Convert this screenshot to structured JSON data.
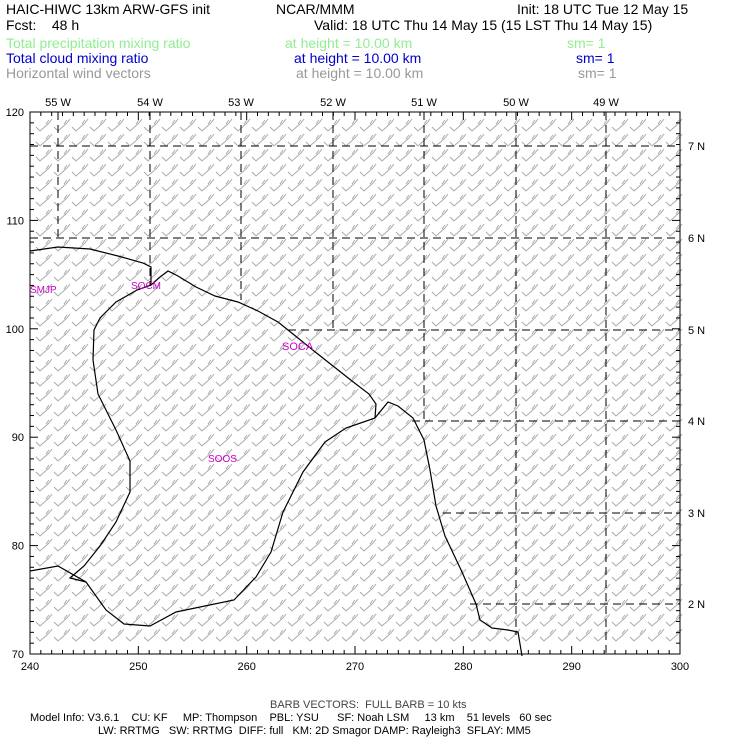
{
  "header": {
    "line1_left": "HAIC-HIWC 13km ARW-GFS init",
    "line1_center": "NCAR/MMM",
    "line1_right": "Init: 18 UTC Tue 12 May 15",
    "line2_left": "Fcst:    48 h",
    "line2_right": "Valid: 18 UTC Thu 14 May 15 (15 LST Thu 14 May 15)"
  },
  "fields": [
    {
      "name": "Total precipitation mixing ratio",
      "height": "at height = 10.00 km",
      "sm": "sm= 1",
      "color": "#90ee90"
    },
    {
      "name": "Total cloud mixing ratio",
      "height": "at height = 10.00 km",
      "sm": "sm= 1",
      "color": "#0000cd"
    },
    {
      "name": "Horizontal wind vectors",
      "height": "at height = 10.00 km",
      "sm": "sm= 1",
      "color": "#999999"
    }
  ],
  "map": {
    "x_ticks": [
      "240",
      "250",
      "260",
      "270",
      "280",
      "290",
      "300"
    ],
    "y_ticks": [
      "70",
      "80",
      "90",
      "100",
      "110",
      "120"
    ],
    "lon_labels": [
      "55 W",
      "54 W",
      "53 W",
      "52 W",
      "51 W",
      "50 W",
      "49 W"
    ],
    "lat_labels": [
      "7 N",
      "6 N",
      "5 N",
      "4 N",
      "3 N",
      "2 N"
    ],
    "stations": [
      {
        "id": "SMJP",
        "color": "#cc00cc"
      },
      {
        "id": "SOCM",
        "color": "#cc00cc"
      },
      {
        "id": "SOCA",
        "color": "#cc00cc"
      },
      {
        "id": "SOOS",
        "color": "#cc00cc"
      }
    ],
    "barb_color": "#aaaaaa",
    "coast_color": "#000000"
  },
  "footer": {
    "barb_note": "BARB VECTORS:  FULL BARB = 10 kts",
    "model_line1": "Model Info: V3.6.1    CU: KF     MP: Thompson    PBL: YSU      SF: Noah LSM     13 km    51 levels   60 sec",
    "model_line2": "LW: RRTMG   SW: RRTMG  DIFF: full   KM: 2D Smagor DAMP: Rayleigh3  SFLAY: MM5"
  }
}
